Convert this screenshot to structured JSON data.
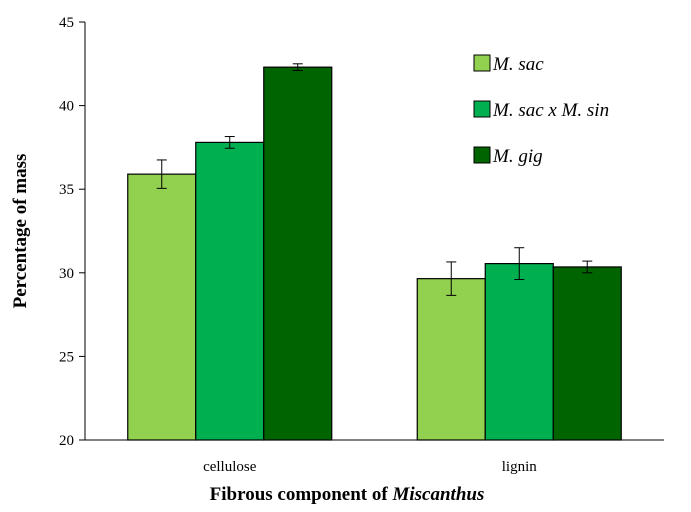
{
  "chart_data": {
    "type": "bar",
    "xlabel_prefix": "Fibrous component of ",
    "xlabel_italic": "Miscanthus",
    "ylabel": "Percentage of mass",
    "ylim": [
      20,
      45
    ],
    "yticks": [
      20,
      25,
      30,
      35,
      40,
      45
    ],
    "categories": [
      "cellulose",
      "lignin"
    ],
    "series": [
      {
        "name": "M. sac",
        "color": "#92d050",
        "values": [
          35.9,
          29.65
        ],
        "errors": [
          0.85,
          1.0
        ]
      },
      {
        "name": "M. sac x M. sin",
        "color": "#00b050",
        "values": [
          37.8,
          30.55
        ],
        "errors": [
          0.35,
          0.95
        ]
      },
      {
        "name": "M. gig",
        "color": "#006400",
        "values": [
          42.3,
          30.35
        ],
        "errors": [
          0.2,
          0.35
        ]
      }
    ],
    "grid": false,
    "legend_position": "top-right"
  }
}
